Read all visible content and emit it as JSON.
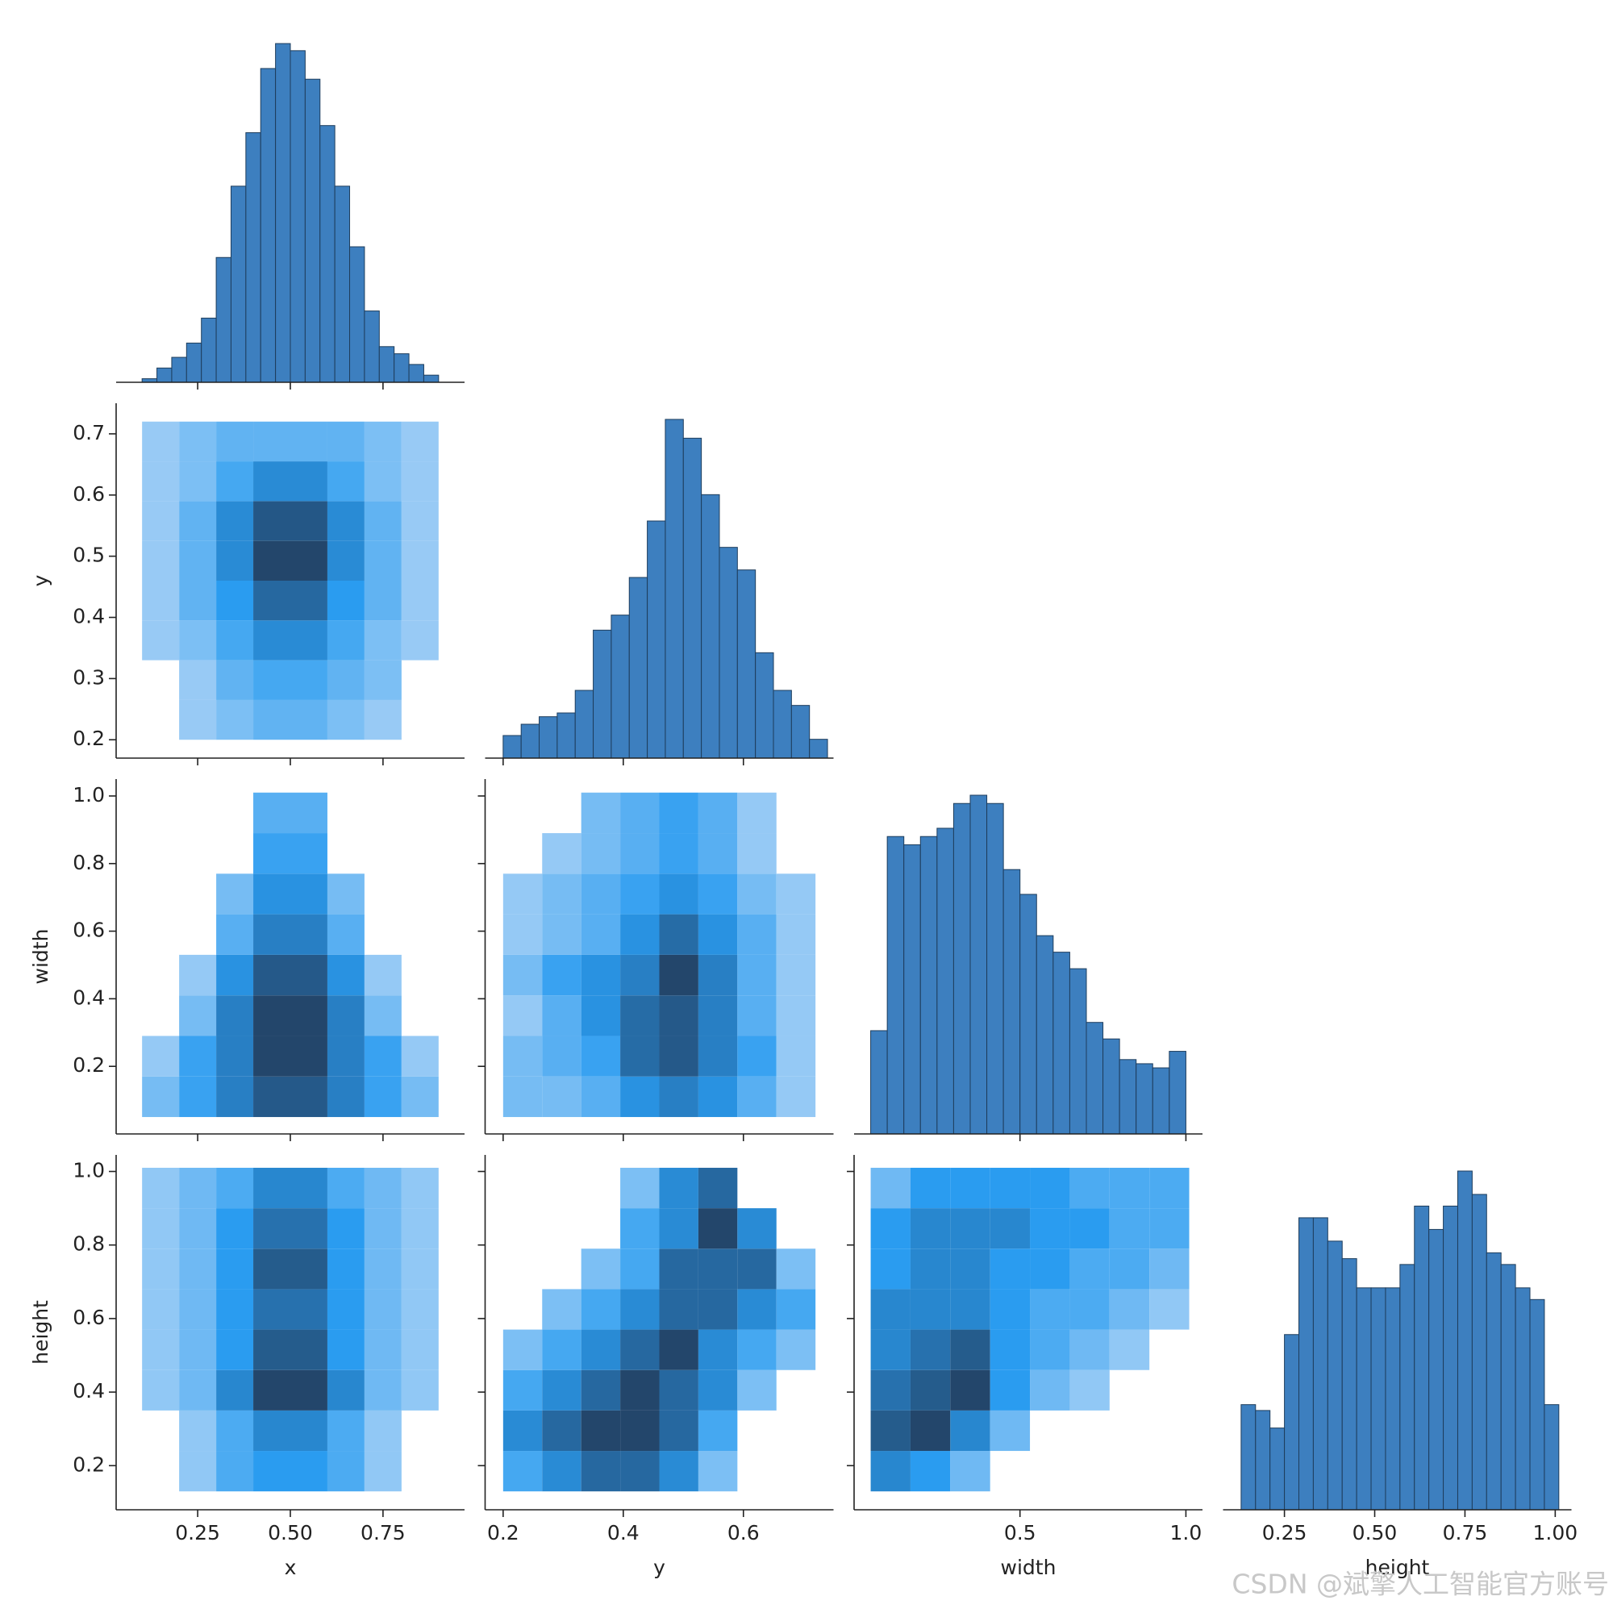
{
  "watermark": "CSDN @斌擎人工智能官方账号",
  "chart_data": [
    {
      "type": "histogram",
      "xlim": [
        0.03,
        0.97
      ],
      "color": "#3d7fbf",
      "edgecolor": "#1e3d5c",
      "bins": [
        0.1,
        0.14,
        0.18,
        0.22,
        0.26,
        0.3,
        0.34,
        0.38,
        0.42,
        0.46,
        0.5,
        0.54,
        0.58,
        0.62,
        0.66,
        0.7,
        0.74,
        0.78,
        0.82,
        0.86,
        0.9
      ],
      "counts": [
        1,
        4,
        7,
        11,
        18,
        35,
        55,
        70,
        88,
        95,
        93,
        85,
        72,
        55,
        38,
        20,
        10,
        8,
        5,
        2
      ]
    },
    {
      "type": "hist2d",
      "ylabel": "y",
      "xlim": [
        0.03,
        0.97
      ],
      "ylim": [
        0.17,
        0.75
      ],
      "yticks": [
        0.2,
        0.3,
        0.4,
        0.5,
        0.6,
        0.7
      ],
      "cmap": [
        "#b3d6f6",
        "#2a9cf0",
        "#23466b"
      ],
      "xbins": [
        0.1,
        0.2,
        0.3,
        0.4,
        0.5,
        0.6,
        0.7,
        0.8,
        0.9
      ],
      "ybins": [
        0.2,
        0.265,
        0.33,
        0.395,
        0.46,
        0.525,
        0.59,
        0.655,
        0.72
      ],
      "counts": [
        [
          0,
          1,
          2,
          3,
          3,
          2,
          1,
          0
        ],
        [
          0,
          1,
          3,
          4,
          4,
          3,
          2,
          0
        ],
        [
          1,
          2,
          4,
          6,
          6,
          4,
          2,
          1
        ],
        [
          1,
          3,
          5,
          8,
          8,
          5,
          3,
          1
        ],
        [
          1,
          3,
          6,
          10,
          10,
          6,
          3,
          1
        ],
        [
          1,
          3,
          6,
          9,
          9,
          6,
          3,
          1
        ],
        [
          1,
          2,
          4,
          6,
          6,
          4,
          2,
          1
        ],
        [
          1,
          2,
          3,
          3,
          3,
          3,
          2,
          1
        ]
      ]
    },
    {
      "type": "histogram",
      "xlim": [
        0.17,
        0.75
      ],
      "color": "#3d7fbf",
      "edgecolor": "#1e3d5c",
      "bins": [
        0.2,
        0.23,
        0.26,
        0.29,
        0.32,
        0.35,
        0.38,
        0.41,
        0.44,
        0.47,
        0.5,
        0.53,
        0.56,
        0.59,
        0.62,
        0.65,
        0.68,
        0.71,
        0.74
      ],
      "counts": [
        6,
        9,
        11,
        12,
        18,
        34,
        38,
        48,
        63,
        90,
        85,
        70,
        56,
        50,
        28,
        18,
        14,
        5
      ]
    },
    {
      "type": "hist2d",
      "ylabel": "width",
      "xlim": [
        0.03,
        0.97
      ],
      "ylim": [
        0.0,
        1.05
      ],
      "yticks": [
        0.2,
        0.4,
        0.6,
        0.8,
        {
          "value": 1.0,
          "label": "1.0"
        }
      ],
      "cmap": [
        "#b3d6f6",
        "#2a9cf0",
        "#23466b"
      ],
      "xbins": [
        0.1,
        0.2,
        0.3,
        0.4,
        0.5,
        0.6,
        0.7,
        0.8,
        0.9
      ],
      "ybins": [
        0.05,
        0.17,
        0.29,
        0.41,
        0.53,
        0.65,
        0.77,
        0.89,
        1.01
      ],
      "counts": [
        [
          2,
          4,
          6,
          8,
          8,
          6,
          4,
          2
        ],
        [
          1,
          4,
          6,
          9,
          9,
          6,
          4,
          1
        ],
        [
          0,
          2,
          6,
          9,
          9,
          6,
          2,
          0
        ],
        [
          0,
          1,
          5,
          8,
          8,
          5,
          1,
          0
        ],
        [
          0,
          0,
          3,
          6,
          6,
          3,
          0,
          0
        ],
        [
          0,
          0,
          2,
          5,
          5,
          2,
          0,
          0
        ],
        [
          0,
          0,
          0,
          4,
          4,
          0,
          0,
          0
        ],
        [
          0,
          0,
          0,
          3,
          3,
          0,
          0,
          0
        ]
      ]
    },
    {
      "type": "hist2d",
      "xlim": [
        0.17,
        0.75
      ],
      "ylim": [
        0.0,
        1.05
      ],
      "cmap": [
        "#b3d6f6",
        "#2a9cf0",
        "#23466b"
      ],
      "xbins": [
        0.2,
        0.265,
        0.33,
        0.395,
        0.46,
        0.525,
        0.59,
        0.655,
        0.72
      ],
      "ybins": [
        0.05,
        0.17,
        0.29,
        0.41,
        0.53,
        0.65,
        0.77,
        0.89,
        1.01
      ],
      "counts": [
        [
          2,
          2,
          3,
          5,
          6,
          5,
          3,
          1
        ],
        [
          2,
          3,
          4,
          7,
          8,
          6,
          4,
          1
        ],
        [
          1,
          3,
          5,
          7,
          8,
          6,
          3,
          1
        ],
        [
          2,
          4,
          5,
          6,
          9,
          6,
          3,
          1
        ],
        [
          1,
          2,
          3,
          5,
          7,
          5,
          3,
          1
        ],
        [
          1,
          2,
          3,
          4,
          5,
          4,
          2,
          1
        ],
        [
          0,
          1,
          2,
          3,
          4,
          3,
          1,
          0
        ],
        [
          0,
          0,
          2,
          3,
          4,
          3,
          1,
          0
        ]
      ]
    },
    {
      "type": "histogram",
      "xlim": [
        0.0,
        1.05
      ],
      "color": "#3d7fbf",
      "edgecolor": "#1e3d5c",
      "bins": [
        0.05,
        0.1,
        0.15,
        0.2,
        0.25,
        0.3,
        0.35,
        0.4,
        0.45,
        0.5,
        0.55,
        0.6,
        0.65,
        0.7,
        0.75,
        0.8,
        0.85,
        0.9,
        0.95,
        1.0
      ],
      "counts": [
        25,
        72,
        70,
        72,
        74,
        80,
        82,
        80,
        64,
        58,
        48,
        44,
        40,
        27,
        23,
        18,
        17,
        16,
        20
      ]
    },
    {
      "type": "hist2d",
      "xlabel": "x",
      "ylabel": "height",
      "xlim": [
        0.03,
        0.97
      ],
      "ylim": [
        0.08,
        1.045
      ],
      "xticks": [
        0.25,
        {
          "value": 0.5,
          "label": "0.50"
        },
        0.75
      ],
      "yticks": [
        0.2,
        0.4,
        0.6,
        0.8,
        {
          "value": 1.0,
          "label": "1.0"
        }
      ],
      "cmap": [
        "#b3d6f6",
        "#2a9cf0",
        "#23466b"
      ],
      "xbins": [
        0.1,
        0.2,
        0.3,
        0.4,
        0.5,
        0.6,
        0.7,
        0.8,
        0.9
      ],
      "ybins": [
        0.13,
        0.24,
        0.35,
        0.46,
        0.57,
        0.68,
        0.79,
        0.9,
        1.01
      ],
      "counts": [
        [
          0,
          1,
          3,
          4,
          4,
          3,
          1,
          0
        ],
        [
          0,
          1,
          3,
          5,
          5,
          3,
          1,
          0
        ],
        [
          1,
          2,
          5,
          8,
          8,
          5,
          2,
          1
        ],
        [
          1,
          2,
          4,
          7,
          7,
          4,
          2,
          1
        ],
        [
          1,
          2,
          4,
          6,
          6,
          4,
          2,
          1
        ],
        [
          1,
          2,
          4,
          7,
          7,
          4,
          2,
          1
        ],
        [
          1,
          2,
          4,
          6,
          6,
          4,
          2,
          1
        ],
        [
          1,
          2,
          3,
          5,
          5,
          3,
          2,
          1
        ]
      ]
    },
    {
      "type": "hist2d",
      "xlabel": "y",
      "xlim": [
        0.17,
        0.75
      ],
      "ylim": [
        0.08,
        1.045
      ],
      "xticks": [
        0.2,
        0.4,
        0.6
      ],
      "cmap": [
        "#b3d6f6",
        "#2a9cf0",
        "#23466b"
      ],
      "xbins": [
        0.2,
        0.265,
        0.33,
        0.395,
        0.46,
        0.525,
        0.59,
        0.655,
        0.72
      ],
      "ybins": [
        0.13,
        0.24,
        0.35,
        0.46,
        0.57,
        0.68,
        0.79,
        0.9,
        1.01
      ],
      "counts": [
        [
          2,
          3,
          4,
          4,
          3,
          1,
          0,
          0
        ],
        [
          3,
          4,
          5,
          5,
          4,
          2,
          0,
          0
        ],
        [
          2,
          3,
          4,
          5,
          4,
          3,
          1,
          0
        ],
        [
          1,
          2,
          3,
          4,
          5,
          3,
          2,
          1
        ],
        [
          0,
          1,
          2,
          3,
          4,
          4,
          3,
          2
        ],
        [
          0,
          0,
          1,
          2,
          4,
          4,
          4,
          1
        ],
        [
          0,
          0,
          0,
          2,
          3,
          5,
          3,
          0
        ],
        [
          0,
          0,
          0,
          1,
          3,
          4,
          0,
          0
        ]
      ]
    },
    {
      "type": "hist2d",
      "xlabel": "width",
      "xlim": [
        0.0,
        1.05
      ],
      "ylim": [
        0.08,
        1.045
      ],
      "xticks": [
        0.5,
        {
          "value": 1.0,
          "label": "1.0"
        }
      ],
      "cmap": [
        "#b3d6f6",
        "#2a9cf0",
        "#23466b"
      ],
      "xbins": [
        0.05,
        0.17,
        0.29,
        0.41,
        0.53,
        0.65,
        0.77,
        0.89,
        1.01
      ],
      "ybins": [
        0.13,
        0.24,
        0.35,
        0.46,
        0.57,
        0.68,
        0.79,
        0.9,
        1.01
      ],
      "counts": [
        [
          5,
          4,
          2,
          0,
          0,
          0,
          0,
          0
        ],
        [
          7,
          8,
          5,
          2,
          0,
          0,
          0,
          0
        ],
        [
          6,
          7,
          8,
          4,
          2,
          1,
          0,
          0
        ],
        [
          5,
          6,
          7,
          4,
          3,
          2,
          1,
          0
        ],
        [
          5,
          5,
          5,
          4,
          3,
          3,
          2,
          1
        ],
        [
          4,
          5,
          5,
          4,
          4,
          3,
          3,
          2
        ],
        [
          4,
          5,
          5,
          5,
          4,
          4,
          3,
          3
        ],
        [
          2,
          4,
          4,
          4,
          4,
          3,
          3,
          3
        ]
      ]
    },
    {
      "type": "histogram",
      "xlabel": "height",
      "xlim": [
        0.08,
        1.045
      ],
      "color": "#3d7fbf",
      "edgecolor": "#1e3d5c",
      "xticks": [
        0.25,
        {
          "value": 0.5,
          "label": "0.50"
        },
        0.75,
        {
          "value": 1.0,
          "label": "1.00"
        }
      ],
      "bins": [
        0.13,
        0.17,
        0.21,
        0.25,
        0.29,
        0.33,
        0.37,
        0.41,
        0.45,
        0.49,
        0.53,
        0.57,
        0.61,
        0.65,
        0.69,
        0.73,
        0.77,
        0.81,
        0.85,
        0.89,
        0.93,
        0.97,
        1.01
      ],
      "counts": [
        18,
        17,
        14,
        30,
        50,
        50,
        46,
        43,
        38,
        38,
        38,
        42,
        52,
        48,
        52,
        58,
        54,
        44,
        42,
        38,
        36,
        18
      ]
    }
  ]
}
